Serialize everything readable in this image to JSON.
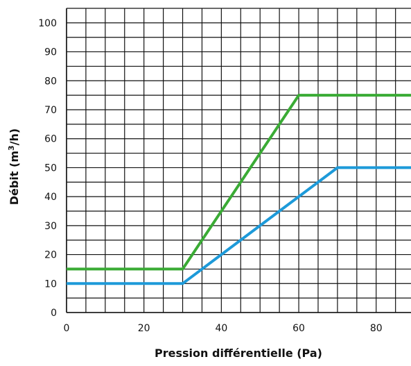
{
  "chart_data": {
    "type": "line",
    "title": "",
    "xlabel": "Pression différentielle (Pa)",
    "ylabel_main": "Débit (m",
    "ylabel_sup": "3",
    "ylabel_end": "/h)",
    "xlim": [
      0,
      89
    ],
    "ylim": [
      0,
      105
    ],
    "x_major_ticks": [
      0,
      20,
      40,
      60,
      80
    ],
    "x_tick_labels": [
      "0",
      "20",
      "40",
      "60",
      "80"
    ],
    "y_major_ticks": [
      0,
      10,
      20,
      30,
      40,
      50,
      60,
      70,
      80,
      90,
      100
    ],
    "y_tick_labels": [
      "0",
      "10",
      "20",
      "30",
      "40",
      "50",
      "60",
      "70",
      "80",
      "90",
      "100"
    ],
    "x_grid_step": 5,
    "y_grid_step": 5,
    "grid": true,
    "series": [
      {
        "color": "#3aab35",
        "x": [
          0,
          30,
          60,
          89
        ],
        "y": [
          15,
          15,
          75,
          75
        ]
      },
      {
        "color": "#1d9ad9",
        "x": [
          0,
          30,
          70,
          89
        ],
        "y": [
          10,
          10,
          50,
          50
        ]
      }
    ]
  }
}
